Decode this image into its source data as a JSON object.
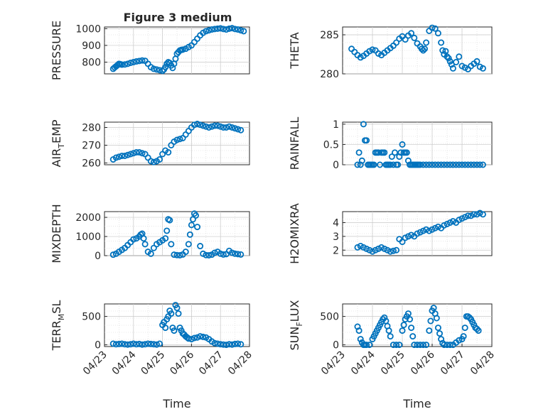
{
  "chart_data": [
    {
      "type": "scatter",
      "title": "Figure 3 medium",
      "ylabel": "PRESSURE",
      "xlabel": "",
      "xlim": [
        0,
        5
      ],
      "ylim": [
        730,
        1010
      ],
      "yticks": [
        800,
        900,
        1000
      ],
      "xticks": [],
      "xtick_labels": [],
      "grid": true,
      "series": [
        {
          "color": "#0072BD",
          "marker": "circle",
          "x": [
            0.3,
            0.35,
            0.4,
            0.45,
            0.5,
            0.55,
            0.6,
            0.7,
            0.8,
            0.9,
            1.0,
            1.1,
            1.2,
            1.3,
            1.4,
            1.5,
            1.6,
            1.7,
            1.8,
            1.9,
            2.0,
            2.05,
            2.1,
            2.15,
            2.2,
            2.25,
            2.3,
            2.35,
            2.4,
            2.45,
            2.5,
            2.55,
            2.6,
            2.65,
            2.7,
            2.8,
            2.9,
            3.0,
            3.1,
            3.2,
            3.3,
            3.4,
            3.5,
            3.6,
            3.7,
            3.8,
            3.9,
            4.0,
            4.1,
            4.2,
            4.3,
            4.4,
            4.5,
            4.6,
            4.7,
            4.8
          ],
          "y": [
            760,
            768,
            775,
            782,
            790,
            788,
            785,
            786,
            790,
            796,
            800,
            804,
            807,
            810,
            808,
            790,
            770,
            760,
            756,
            752,
            748,
            756,
            770,
            790,
            800,
            795,
            780,
            765,
            790,
            820,
            850,
            860,
            870,
            873,
            875,
            880,
            890,
            900,
            920,
            940,
            960,
            975,
            985,
            990,
            995,
            998,
            1000,
            1002,
            998,
            995,
            1000,
            1003,
            998,
            995,
            990,
            985
          ]
        }
      ]
    },
    {
      "type": "scatter",
      "ylabel": "THETA",
      "xlabel": "",
      "xlim": [
        0,
        5
      ],
      "ylim": [
        280,
        286
      ],
      "yticks": [
        280,
        285
      ],
      "xticks": [],
      "xtick_labels": [],
      "grid": true,
      "series": [
        {
          "color": "#0072BD",
          "marker": "circle",
          "x": [
            0.3,
            0.4,
            0.5,
            0.6,
            0.7,
            0.8,
            0.9,
            1.0,
            1.1,
            1.2,
            1.3,
            1.4,
            1.5,
            1.6,
            1.7,
            1.8,
            1.9,
            2.0,
            2.1,
            2.2,
            2.3,
            2.4,
            2.5,
            2.6,
            2.65,
            2.7,
            2.75,
            2.8,
            2.9,
            3.0,
            3.1,
            3.2,
            3.3,
            3.35,
            3.4,
            3.45,
            3.5,
            3.55,
            3.6,
            3.65,
            3.7,
            3.8,
            3.9,
            4.0,
            4.1,
            4.2,
            4.3,
            4.4,
            4.5,
            4.6,
            4.7
          ],
          "y": [
            283.2,
            282.8,
            282.4,
            282.1,
            282.3,
            282.6,
            282.9,
            283.1,
            283.0,
            282.6,
            282.4,
            282.7,
            283.0,
            283.3,
            283.6,
            284.0,
            284.5,
            284.8,
            284.4,
            284.9,
            285.2,
            284.6,
            283.9,
            283.5,
            283.2,
            283.0,
            283.2,
            284.0,
            285.5,
            285.9,
            285.8,
            285.2,
            284.0,
            283.0,
            282.5,
            282.9,
            282.2,
            282.0,
            281.6,
            281.2,
            280.7,
            281.5,
            282.2,
            281.0,
            280.8,
            280.6,
            281.0,
            281.3,
            281.6,
            280.9,
            280.7
          ]
        }
      ]
    },
    {
      "type": "scatter",
      "ylabel": "AIR_TEMP",
      "xlabel": "",
      "xlim": [
        0,
        5
      ],
      "ylim": [
        259,
        283
      ],
      "yticks": [
        260,
        270,
        280
      ],
      "xticks": [],
      "xtick_labels": [],
      "grid": true,
      "series": [
        {
          "color": "#0072BD",
          "marker": "circle",
          "x": [
            0.3,
            0.4,
            0.5,
            0.6,
            0.7,
            0.8,
            0.9,
            1.0,
            1.1,
            1.2,
            1.3,
            1.4,
            1.5,
            1.6,
            1.7,
            1.8,
            1.9,
            2.0,
            2.1,
            2.2,
            2.3,
            2.4,
            2.5,
            2.6,
            2.7,
            2.8,
            2.9,
            3.0,
            3.1,
            3.2,
            3.3,
            3.4,
            3.5,
            3.6,
            3.7,
            3.8,
            3.9,
            4.0,
            4.1,
            4.2,
            4.3,
            4.4,
            4.5,
            4.6,
            4.7
          ],
          "y": [
            262,
            263,
            263.5,
            264,
            264,
            264.5,
            265,
            265.5,
            266,
            266,
            265.5,
            265,
            263,
            261,
            260.5,
            261,
            262,
            265,
            267,
            266,
            270,
            272,
            273,
            273.5,
            274,
            276,
            278,
            280,
            281.5,
            282,
            281.5,
            281,
            280.5,
            280,
            280.5,
            281,
            281,
            280.5,
            280,
            280,
            280.5,
            280,
            279.5,
            279,
            278.5
          ]
        }
      ]
    },
    {
      "type": "scatter",
      "ylabel": "RAINFALL",
      "xlabel": "",
      "xlim": [
        0,
        5
      ],
      "ylim": [
        0,
        1.05
      ],
      "yticks": [
        0,
        0.5,
        1
      ],
      "xticks": [],
      "xtick_labels": [],
      "grid": true,
      "series": [
        {
          "color": "#0072BD",
          "marker": "circle",
          "x": [
            0.5,
            0.55,
            0.6,
            0.65,
            0.7,
            0.75,
            0.8,
            0.85,
            0.9,
            0.95,
            1.0,
            1.05,
            1.1,
            1.15,
            1.2,
            1.25,
            1.3,
            1.35,
            1.4,
            1.45,
            1.5,
            1.55,
            1.6,
            1.65,
            1.7,
            1.75,
            1.8,
            1.85,
            1.9,
            1.95,
            2.0,
            2.05,
            2.1,
            2.15,
            2.2,
            2.25,
            2.3,
            2.35,
            2.4,
            2.45,
            2.5,
            2.55,
            2.6,
            2.7,
            2.8,
            2.9,
            3.0,
            3.1,
            3.2,
            3.3,
            3.4,
            3.5,
            3.6,
            3.7,
            3.8,
            3.9,
            4.0,
            4.1,
            4.2,
            4.3,
            4.4,
            4.5,
            4.6,
            4.7
          ],
          "y": [
            0,
            0.3,
            0,
            0.1,
            1.0,
            0.6,
            0.6,
            0,
            0,
            0,
            0,
            0,
            0.3,
            0.3,
            0.3,
            0,
            0.3,
            0.3,
            0.3,
            0,
            0,
            0,
            0,
            0.2,
            0,
            0.3,
            0,
            0,
            0.2,
            0.3,
            0.5,
            0.3,
            0.3,
            0.3,
            0.1,
            0,
            0,
            0,
            0,
            0,
            0,
            0,
            0,
            0,
            0,
            0,
            0,
            0,
            0,
            0,
            0,
            0,
            0,
            0,
            0,
            0,
            0,
            0,
            0,
            0,
            0,
            0,
            0,
            0
          ]
        }
      ]
    },
    {
      "type": "scatter",
      "ylabel": "MIXDEPTH",
      "xlabel": "",
      "xlim": [
        0,
        5
      ],
      "ylim": [
        0,
        2300
      ],
      "yticks": [
        0,
        1000,
        2000
      ],
      "xticks": [],
      "xtick_labels": [],
      "grid": true,
      "series": [
        {
          "color": "#0072BD",
          "marker": "circle",
          "x": [
            0.3,
            0.4,
            0.5,
            0.6,
            0.7,
            0.8,
            0.9,
            1.0,
            1.1,
            1.2,
            1.25,
            1.3,
            1.35,
            1.4,
            1.5,
            1.6,
            1.7,
            1.8,
            1.9,
            2.0,
            2.1,
            2.15,
            2.2,
            2.25,
            2.3,
            2.4,
            2.5,
            2.6,
            2.7,
            2.8,
            2.9,
            2.95,
            3.0,
            3.05,
            3.1,
            3.15,
            3.2,
            3.3,
            3.4,
            3.5,
            3.6,
            3.7,
            3.8,
            3.9,
            4.0,
            4.1,
            4.2,
            4.3,
            4.4,
            4.5,
            4.6,
            4.7
          ],
          "y": [
            50,
            100,
            200,
            300,
            400,
            550,
            700,
            850,
            900,
            1000,
            1100,
            1150,
            900,
            600,
            200,
            100,
            400,
            600,
            700,
            800,
            900,
            1300,
            1900,
            1850,
            600,
            50,
            30,
            20,
            60,
            200,
            600,
            1100,
            1600,
            1900,
            2200,
            2100,
            1500,
            500,
            100,
            30,
            20,
            50,
            150,
            200,
            100,
            60,
            80,
            250,
            150,
            100,
            80,
            60
          ]
        }
      ]
    },
    {
      "type": "scatter",
      "ylabel": "H2OMIXRA",
      "xlabel": "",
      "xlim": [
        0,
        5
      ],
      "ylim": [
        1.6,
        4.8
      ],
      "yticks": [
        2,
        3,
        4
      ],
      "xticks": [],
      "xtick_labels": [],
      "grid": true,
      "series": [
        {
          "color": "#0072BD",
          "marker": "circle",
          "x": [
            0.5,
            0.6,
            0.7,
            0.8,
            0.9,
            1.0,
            1.1,
            1.2,
            1.3,
            1.4,
            1.5,
            1.6,
            1.7,
            1.8,
            1.9,
            2.0,
            2.1,
            2.2,
            2.3,
            2.4,
            2.5,
            2.6,
            2.7,
            2.8,
            2.9,
            3.0,
            3.1,
            3.2,
            3.3,
            3.4,
            3.5,
            3.6,
            3.7,
            3.8,
            3.9,
            4.0,
            4.1,
            4.2,
            4.3,
            4.4,
            4.5,
            4.6,
            4.7
          ],
          "y": [
            2.2,
            2.3,
            2.2,
            2.1,
            2.0,
            1.9,
            2.0,
            2.1,
            2.2,
            2.1,
            2.0,
            1.9,
            1.95,
            2.0,
            2.8,
            2.6,
            2.9,
            3.0,
            3.1,
            3.0,
            3.2,
            3.3,
            3.4,
            3.5,
            3.4,
            3.5,
            3.6,
            3.7,
            3.6,
            3.8,
            3.9,
            4.0,
            4.1,
            4.0,
            4.2,
            4.3,
            4.4,
            4.5,
            4.5,
            4.6,
            4.6,
            4.7,
            4.6
          ]
        }
      ]
    },
    {
      "type": "scatter",
      "ylabel": "TERR_MSL",
      "xlabel": "Time",
      "xlim": [
        0,
        5
      ],
      "ylim": [
        -30,
        720
      ],
      "yticks": [
        0,
        500
      ],
      "xticks": [
        0,
        1,
        2,
        3,
        4,
        5
      ],
      "xtick_labels": [
        "04/23",
        "04/24",
        "04/25",
        "04/26",
        "04/27",
        "04/28"
      ],
      "grid": true,
      "series": [
        {
          "color": "#0072BD",
          "marker": "circle",
          "x": [
            0.3,
            0.4,
            0.5,
            0.6,
            0.7,
            0.8,
            0.9,
            1.0,
            1.1,
            1.2,
            1.3,
            1.4,
            1.5,
            1.6,
            1.7,
            1.8,
            1.9,
            2.0,
            2.05,
            2.1,
            2.15,
            2.2,
            2.25,
            2.3,
            2.35,
            2.4,
            2.45,
            2.5,
            2.55,
            2.6,
            2.65,
            2.7,
            2.75,
            2.8,
            2.85,
            2.9,
            3.0,
            3.1,
            3.2,
            3.3,
            3.4,
            3.5,
            3.6,
            3.7,
            3.8,
            3.9,
            4.0,
            4.1,
            4.2,
            4.3,
            4.4,
            4.5,
            4.6,
            4.7
          ],
          "y": [
            20,
            10,
            15,
            20,
            10,
            5,
            10,
            20,
            10,
            15,
            5,
            10,
            20,
            15,
            10,
            5,
            20,
            350,
            400,
            300,
            450,
            500,
            600,
            550,
            300,
            250,
            700,
            650,
            550,
            300,
            250,
            200,
            180,
            150,
            130,
            110,
            100,
            120,
            130,
            150,
            140,
            130,
            100,
            60,
            30,
            20,
            10,
            5,
            0,
            10,
            5,
            15,
            20,
            10
          ]
        }
      ]
    },
    {
      "type": "scatter",
      "ylabel": "SUN_FLUX",
      "xlabel": "Time",
      "xlim": [
        0,
        5
      ],
      "ylim": [
        -30,
        720
      ],
      "yticks": [
        0,
        500
      ],
      "xticks": [
        0,
        1,
        2,
        3,
        4,
        5
      ],
      "xtick_labels": [
        "04/23",
        "04/24",
        "04/25",
        "04/26",
        "04/27",
        "04/28"
      ],
      "grid": true,
      "series": [
        {
          "color": "#0072BD",
          "marker": "circle",
          "x": [
            0.5,
            0.55,
            0.6,
            0.65,
            0.7,
            0.75,
            0.8,
            0.9,
            1.0,
            1.05,
            1.1,
            1.15,
            1.2,
            1.25,
            1.3,
            1.35,
            1.4,
            1.45,
            1.5,
            1.55,
            1.6,
            1.7,
            1.8,
            1.9,
            2.0,
            2.05,
            2.1,
            2.15,
            2.2,
            2.25,
            2.3,
            2.35,
            2.4,
            2.5,
            2.6,
            2.7,
            2.8,
            2.9,
            2.95,
            3.0,
            3.05,
            3.1,
            3.15,
            3.2,
            3.25,
            3.3,
            3.35,
            3.4,
            3.5,
            3.6,
            3.7,
            3.8,
            3.9,
            4.0,
            4.05,
            4.1,
            4.15,
            4.2,
            4.25,
            4.3,
            4.35,
            4.4,
            4.45,
            4.5,
            4.55
          ],
          "y": [
            320,
            250,
            100,
            40,
            0,
            0,
            0,
            0,
            100,
            150,
            200,
            250,
            300,
            350,
            400,
            450,
            480,
            420,
            330,
            250,
            150,
            0,
            0,
            0,
            250,
            350,
            450,
            500,
            550,
            450,
            300,
            150,
            0,
            0,
            0,
            0,
            0,
            250,
            420,
            600,
            650,
            550,
            470,
            300,
            200,
            100,
            30,
            0,
            0,
            0,
            0,
            40,
            80,
            100,
            150,
            300,
            500,
            500,
            480,
            450,
            400,
            350,
            300,
            280,
            250
          ]
        }
      ]
    }
  ]
}
